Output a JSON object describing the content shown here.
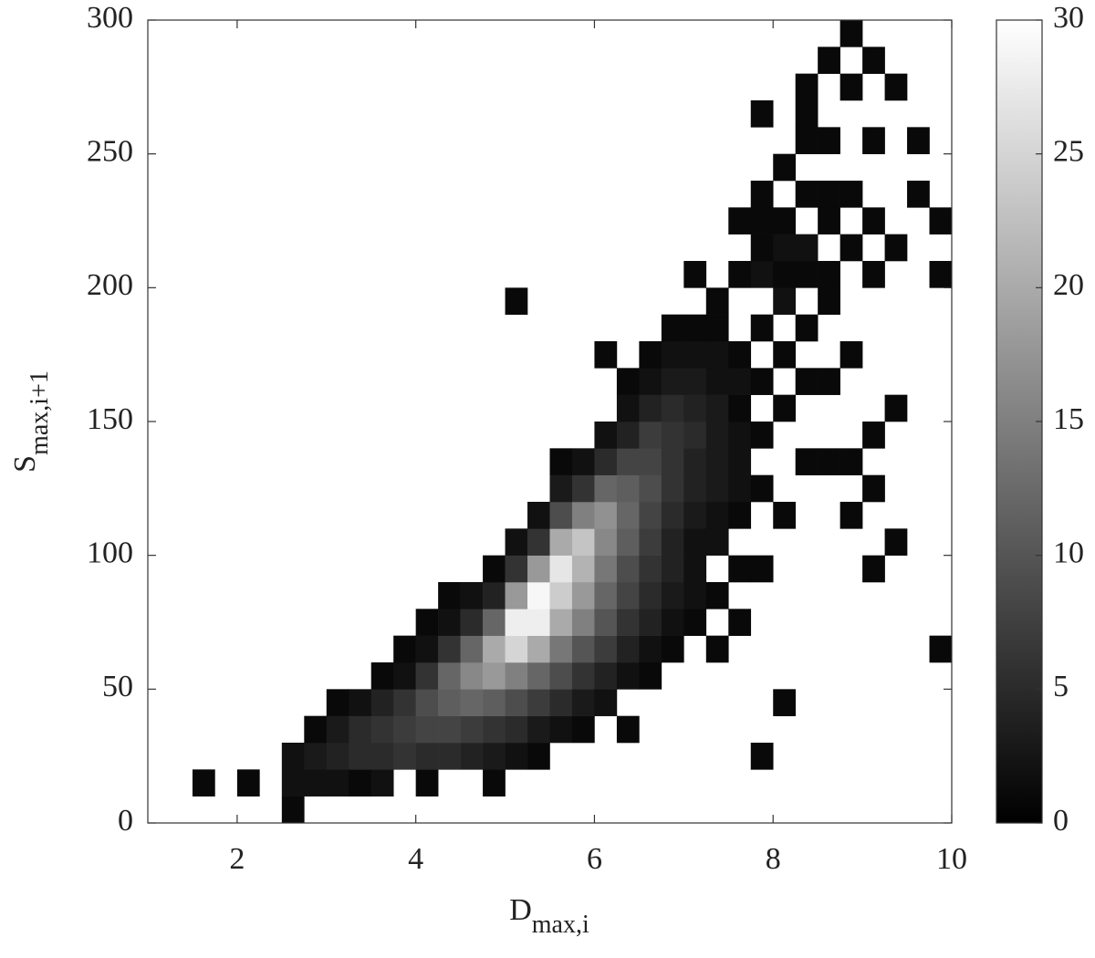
{
  "chart_data": {
    "type": "heatmap2d",
    "x_label": "D",
    "x_label_sub": "max,i",
    "y_label": "S",
    "y_label_sub": "max,i+1",
    "bin_size": [
      0.25,
      10
    ],
    "xlim": [
      1,
      10
    ],
    "xticks": [
      2,
      4,
      6,
      8,
      10
    ],
    "ylim": [
      0,
      300
    ],
    "yticks": [
      0,
      50,
      100,
      150,
      200,
      250,
      300
    ],
    "clim": [
      0,
      30
    ],
    "cticks": [
      0,
      5,
      10,
      15,
      20,
      25,
      30
    ],
    "colormap": [
      "#000000",
      "#ffffff"
    ],
    "x": [
      1.5,
      2.0,
      2.5,
      2.5,
      2.5,
      2.75,
      2.75,
      2.75,
      3.0,
      3.0,
      3.0,
      3.0,
      3.25,
      3.25,
      3.25,
      3.25,
      3.5,
      3.5,
      3.5,
      3.5,
      3.5,
      3.75,
      3.75,
      3.75,
      3.75,
      3.75,
      4.0,
      4.0,
      4.0,
      4.0,
      4.0,
      4.0,
      4.0,
      4.25,
      4.25,
      4.25,
      4.25,
      4.25,
      4.25,
      4.25,
      4.5,
      4.5,
      4.5,
      4.5,
      4.5,
      4.5,
      4.5,
      4.75,
      4.75,
      4.75,
      4.75,
      4.75,
      4.75,
      4.75,
      4.75,
      4.75,
      5.0,
      5.0,
      5.0,
      5.0,
      5.0,
      5.0,
      5.0,
      5.0,
      5.0,
      5.0,
      5.25,
      5.25,
      5.25,
      5.25,
      5.25,
      5.25,
      5.25,
      5.25,
      5.25,
      5.25,
      5.5,
      5.5,
      5.5,
      5.5,
      5.5,
      5.5,
      5.5,
      5.5,
      5.5,
      5.5,
      5.5,
      5.75,
      5.75,
      5.75,
      5.75,
      5.75,
      5.75,
      5.75,
      5.75,
      5.75,
      5.75,
      5.75,
      6.0,
      6.0,
      6.0,
      6.0,
      6.0,
      6.0,
      6.0,
      6.0,
      6.0,
      6.0,
      6.0,
      6.0,
      6.25,
      6.25,
      6.25,
      6.25,
      6.25,
      6.25,
      6.25,
      6.25,
      6.25,
      6.25,
      6.25,
      6.25,
      6.25,
      6.5,
      6.5,
      6.5,
      6.5,
      6.5,
      6.5,
      6.5,
      6.5,
      6.5,
      6.5,
      6.5,
      6.5,
      6.5,
      6.75,
      6.75,
      6.75,
      6.75,
      6.75,
      6.75,
      6.75,
      6.75,
      6.75,
      6.75,
      6.75,
      6.75,
      6.75,
      7.0,
      7.0,
      7.0,
      7.0,
      7.0,
      7.0,
      7.0,
      7.0,
      7.0,
      7.0,
      7.0,
      7.0,
      7.0,
      7.25,
      7.25,
      7.25,
      7.25,
      7.25,
      7.25,
      7.25,
      7.25,
      7.25,
      7.25,
      7.25,
      7.25,
      7.5,
      7.5,
      7.5,
      7.5,
      7.5,
      7.5,
      7.5,
      7.5,
      7.5,
      7.5,
      7.5,
      7.75,
      7.75,
      7.75,
      7.75,
      7.75,
      7.75,
      7.75,
      7.75,
      7.75,
      7.75,
      7.75,
      8.0,
      8.0,
      8.0,
      8.0,
      8.0,
      8.0,
      8.0,
      8.0,
      8.0,
      8.25,
      8.25,
      8.25,
      8.25,
      8.25,
      8.25,
      8.25,
      8.25,
      8.25,
      8.5,
      8.5,
      8.5,
      8.5,
      8.5,
      8.5,
      8.5,
      8.5,
      8.75,
      8.75,
      8.75,
      8.75,
      8.75,
      8.75,
      8.75,
      9.0,
      9.0,
      9.0,
      9.0,
      9.0,
      9.0,
      9.0,
      9.25,
      9.25,
      9.25,
      9.25,
      9.5,
      9.5,
      9.75,
      9.75,
      9.75
    ],
    "y": [
      10,
      10,
      0,
      10,
      20,
      10,
      20,
      30,
      10,
      20,
      30,
      40,
      10,
      20,
      30,
      40,
      10,
      20,
      30,
      40,
      50,
      20,
      30,
      40,
      50,
      60,
      10,
      20,
      30,
      40,
      50,
      60,
      70,
      20,
      30,
      40,
      50,
      60,
      70,
      80,
      20,
      30,
      40,
      50,
      60,
      70,
      80,
      10,
      20,
      30,
      40,
      50,
      60,
      70,
      80,
      90,
      20,
      30,
      40,
      50,
      60,
      70,
      80,
      90,
      100,
      190,
      20,
      30,
      40,
      50,
      60,
      70,
      80,
      90,
      100,
      110,
      30,
      40,
      50,
      60,
      70,
      80,
      90,
      100,
      110,
      120,
      130,
      30,
      40,
      50,
      60,
      70,
      80,
      90,
      100,
      110,
      120,
      130,
      40,
      50,
      60,
      70,
      80,
      90,
      100,
      110,
      120,
      130,
      140,
      170,
      30,
      50,
      60,
      70,
      80,
      90,
      100,
      110,
      120,
      130,
      140,
      150,
      160,
      50,
      60,
      70,
      80,
      90,
      100,
      110,
      120,
      130,
      140,
      150,
      160,
      170,
      60,
      70,
      80,
      90,
      100,
      110,
      120,
      130,
      140,
      150,
      160,
      170,
      180,
      70,
      80,
      90,
      100,
      110,
      120,
      130,
      140,
      150,
      160,
      170,
      180,
      200,
      60,
      80,
      100,
      110,
      120,
      130,
      140,
      150,
      160,
      170,
      180,
      190,
      70,
      90,
      110,
      120,
      130,
      140,
      150,
      160,
      170,
      200,
      220,
      20,
      90,
      120,
      140,
      160,
      180,
      200,
      210,
      220,
      230,
      260,
      40,
      110,
      150,
      170,
      190,
      200,
      210,
      220,
      240,
      130,
      160,
      180,
      200,
      210,
      230,
      250,
      260,
      270,
      130,
      160,
      190,
      200,
      220,
      230,
      250,
      280,
      110,
      130,
      170,
      210,
      230,
      270,
      290,
      90,
      120,
      140,
      200,
      220,
      250,
      280,
      100,
      150,
      210,
      270,
      230,
      250,
      60,
      200,
      220
    ],
    "values": [
      1,
      1,
      1,
      2,
      2,
      2,
      3,
      1,
      2,
      4,
      3,
      1,
      1,
      5,
      5,
      2,
      2,
      5,
      6,
      4,
      1,
      6,
      7,
      6,
      2,
      1,
      1,
      5,
      8,
      9,
      6,
      2,
      1,
      5,
      8,
      11,
      12,
      6,
      2,
      1,
      4,
      7,
      12,
      16,
      12,
      5,
      2,
      1,
      3,
      6,
      11,
      18,
      20,
      12,
      4,
      1,
      2,
      5,
      9,
      15,
      25,
      28,
      18,
      6,
      2,
      1,
      1,
      3,
      7,
      12,
      20,
      28,
      29,
      18,
      6,
      2,
      2,
      5,
      9,
      14,
      20,
      24,
      27,
      20,
      9,
      3,
      1,
      1,
      3,
      6,
      10,
      15,
      18,
      21,
      23,
      15,
      6,
      2,
      2,
      4,
      7,
      10,
      12,
      14,
      16,
      17,
      12,
      5,
      2,
      1,
      1,
      2,
      4,
      6,
      8,
      9,
      11,
      12,
      11,
      8,
      4,
      2,
      1,
      1,
      2,
      4,
      5,
      6,
      7,
      8,
      9,
      8,
      7,
      4,
      2,
      1,
      1,
      2,
      3,
      4,
      4,
      5,
      6,
      6,
      6,
      5,
      3,
      2,
      1,
      1,
      2,
      2,
      2,
      3,
      4,
      4,
      5,
      4,
      3,
      2,
      1,
      1,
      1,
      1,
      2,
      2,
      3,
      3,
      3,
      3,
      2,
      2,
      1,
      1,
      1,
      1,
      1,
      2,
      2,
      2,
      1,
      2,
      1,
      1,
      1,
      1,
      1,
      1,
      1,
      1,
      1,
      2,
      1,
      1,
      1,
      1,
      1,
      1,
      1,
      1,
      2,
      1,
      2,
      1,
      1,
      1,
      1,
      1,
      1,
      2,
      1,
      1,
      1,
      1,
      1,
      1,
      1,
      1,
      1,
      1,
      1,
      1,
      1,
      1,
      1,
      1,
      1,
      1,
      1,
      1,
      1,
      1,
      1,
      1,
      1,
      1,
      1,
      1,
      1,
      1,
      1,
      1,
      1,
      1,
      1
    ]
  }
}
